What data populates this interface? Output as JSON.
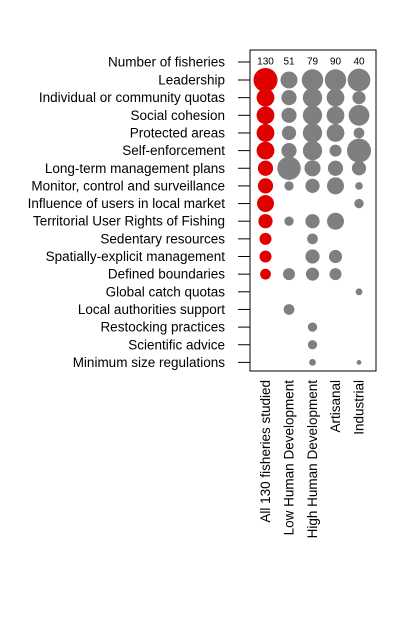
{
  "chart_data": {
    "type": "bubble-matrix",
    "columns": [
      "All 130 fisheries studied",
      "Low Human Development",
      "High Human Development",
      "Artisanal",
      "Industrial"
    ],
    "count_row_label": "Number of fisheries",
    "counts": [
      "130",
      "51",
      "79",
      "90",
      "40"
    ],
    "rows": [
      "Leadership",
      "Individual or community quotas",
      "Social cohesion",
      "Protected areas",
      "Self-enforcement",
      "Long-term management plans",
      "Monitor, control and surveillance",
      "Influence of users in local market",
      "Territorial User Rights of Fishing",
      "Sedentary resources",
      "Spatially-explicit management",
      "Defined boundaries",
      "Global catch quotas",
      "Local authorities support",
      "Restocking practices",
      "Scientific advice",
      "Minimum size regulations"
    ],
    "values": [
      [
        100,
        50,
        80,
        80,
        90
      ],
      [
        55,
        40,
        65,
        55,
        30
      ],
      [
        55,
        40,
        65,
        55,
        75
      ],
      [
        55,
        35,
        65,
        55,
        20
      ],
      [
        55,
        40,
        65,
        25,
        100
      ],
      [
        40,
        95,
        45,
        40,
        35
      ],
      [
        40,
        15,
        35,
        50,
        10
      ],
      [
        50,
        0,
        0,
        0,
        15
      ],
      [
        35,
        15,
        35,
        50,
        0
      ],
      [
        25,
        0,
        20,
        0,
        0
      ],
      [
        25,
        0,
        35,
        30,
        0
      ],
      [
        20,
        25,
        30,
        25,
        0
      ],
      [
        0,
        0,
        0,
        0,
        8
      ],
      [
        0,
        20,
        0,
        0,
        0
      ],
      [
        0,
        0,
        15,
        0,
        0
      ],
      [
        0,
        0,
        15,
        0,
        0
      ],
      [
        0,
        0,
        8,
        0,
        4
      ]
    ],
    "value_unit": "relative frequency (% of fisheries, estimated from bubble size)",
    "colors": {
      "first_column": "#e00000",
      "other_columns": "#7f7f7f"
    }
  }
}
